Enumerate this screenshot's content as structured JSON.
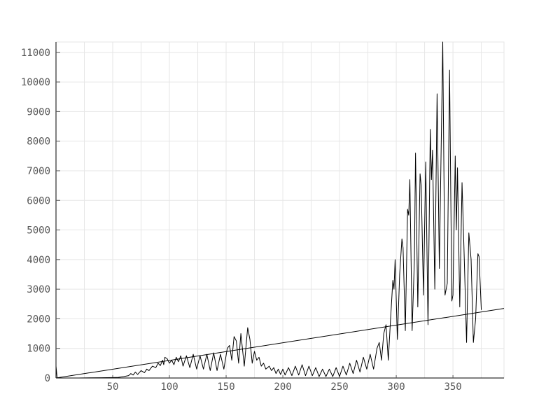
{
  "chart_data": {
    "type": "line",
    "title": "",
    "xlabel": "",
    "ylabel": "",
    "xlim": [
      0,
      395
    ],
    "ylim": [
      0,
      11350
    ],
    "grid": true,
    "x_ticks": [
      50,
      100,
      150,
      200,
      250,
      300,
      350
    ],
    "y_ticks": [
      0,
      1000,
      2000,
      3000,
      4000,
      5000,
      6000,
      7000,
      8000,
      9000,
      10000,
      11000
    ],
    "series": [
      {
        "style": "line",
        "color": "#000000",
        "points": [
          [
            0,
            400
          ],
          [
            1,
            0
          ],
          [
            10,
            0
          ],
          [
            20,
            0
          ],
          [
            30,
            5
          ],
          [
            40,
            10
          ],
          [
            50,
            15
          ],
          [
            55,
            20
          ],
          [
            60,
            50
          ],
          [
            64,
            80
          ],
          [
            66,
            150
          ],
          [
            68,
            100
          ],
          [
            70,
            200
          ],
          [
            72,
            120
          ],
          [
            75,
            250
          ],
          [
            78,
            180
          ],
          [
            80,
            300
          ],
          [
            82,
            250
          ],
          [
            85,
            400
          ],
          [
            88,
            350
          ],
          [
            90,
            500
          ],
          [
            92,
            420
          ],
          [
            94,
            600
          ],
          [
            95,
            450
          ],
          [
            96,
            700
          ],
          [
            98,
            650
          ],
          [
            100,
            500
          ],
          [
            102,
            600
          ],
          [
            104,
            450
          ],
          [
            106,
            700
          ],
          [
            108,
            550
          ],
          [
            110,
            750
          ],
          [
            112,
            400
          ],
          [
            115,
            750
          ],
          [
            118,
            350
          ],
          [
            121,
            800
          ],
          [
            124,
            300
          ],
          [
            127,
            750
          ],
          [
            130,
            300
          ],
          [
            133,
            800
          ],
          [
            136,
            250
          ],
          [
            139,
            850
          ],
          [
            142,
            250
          ],
          [
            145,
            800
          ],
          [
            148,
            300
          ],
          [
            151,
            1000
          ],
          [
            153,
            1100
          ],
          [
            155,
            600
          ],
          [
            157,
            1400
          ],
          [
            159,
            1250
          ],
          [
            161,
            500
          ],
          [
            163,
            1500
          ],
          [
            166,
            400
          ],
          [
            169,
            1700
          ],
          [
            171,
            1300
          ],
          [
            173,
            500
          ],
          [
            175,
            900
          ],
          [
            177,
            600
          ],
          [
            179,
            700
          ],
          [
            181,
            400
          ],
          [
            183,
            500
          ],
          [
            185,
            300
          ],
          [
            188,
            400
          ],
          [
            190,
            250
          ],
          [
            192,
            350
          ],
          [
            194,
            150
          ],
          [
            196,
            300
          ],
          [
            198,
            120
          ],
          [
            200,
            300
          ],
          [
            202,
            100
          ],
          [
            205,
            350
          ],
          [
            208,
            80
          ],
          [
            211,
            400
          ],
          [
            214,
            100
          ],
          [
            217,
            450
          ],
          [
            220,
            80
          ],
          [
            223,
            400
          ],
          [
            226,
            80
          ],
          [
            229,
            350
          ],
          [
            232,
            50
          ],
          [
            235,
            300
          ],
          [
            238,
            50
          ],
          [
            241,
            300
          ],
          [
            244,
            50
          ],
          [
            247,
            350
          ],
          [
            250,
            50
          ],
          [
            253,
            400
          ],
          [
            256,
            100
          ],
          [
            259,
            500
          ],
          [
            262,
            150
          ],
          [
            265,
            600
          ],
          [
            268,
            200
          ],
          [
            271,
            700
          ],
          [
            274,
            300
          ],
          [
            277,
            800
          ],
          [
            280,
            300
          ],
          [
            283,
            1000
          ],
          [
            285,
            1200
          ],
          [
            287,
            600
          ],
          [
            289,
            1500
          ],
          [
            291,
            1800
          ],
          [
            293,
            600
          ],
          [
            295,
            2000
          ],
          [
            297,
            3300
          ],
          [
            298,
            3000
          ],
          [
            299,
            4000
          ],
          [
            301,
            1300
          ],
          [
            303,
            3500
          ],
          [
            305,
            4700
          ],
          [
            306,
            4400
          ],
          [
            308,
            1600
          ],
          [
            310,
            5700
          ],
          [
            311,
            5500
          ],
          [
            312,
            6700
          ],
          [
            314,
            1600
          ],
          [
            316,
            4000
          ],
          [
            317,
            7600
          ],
          [
            319,
            2400
          ],
          [
            321,
            6900
          ],
          [
            322,
            6500
          ],
          [
            324,
            2800
          ],
          [
            326,
            7300
          ],
          [
            328,
            1800
          ],
          [
            330,
            8400
          ],
          [
            331,
            6700
          ],
          [
            332,
            7700
          ],
          [
            334,
            3000
          ],
          [
            336,
            9600
          ],
          [
            338,
            3700
          ],
          [
            341,
            11350
          ],
          [
            343,
            2800
          ],
          [
            345,
            3200
          ],
          [
            347,
            10400
          ],
          [
            349,
            2600
          ],
          [
            350,
            2800
          ],
          [
            352,
            7500
          ],
          [
            353,
            5000
          ],
          [
            354,
            7100
          ],
          [
            356,
            2400
          ],
          [
            358,
            6600
          ],
          [
            360,
            4000
          ],
          [
            362,
            1200
          ],
          [
            364,
            4900
          ],
          [
            366,
            4000
          ],
          [
            368,
            1200
          ],
          [
            370,
            2000
          ],
          [
            372,
            4200
          ],
          [
            373,
            4100
          ],
          [
            375,
            2300
          ]
        ]
      },
      {
        "style": "trend",
        "color": "#000000",
        "points": [
          [
            0,
            0
          ],
          [
            395,
            2350
          ]
        ]
      }
    ]
  }
}
